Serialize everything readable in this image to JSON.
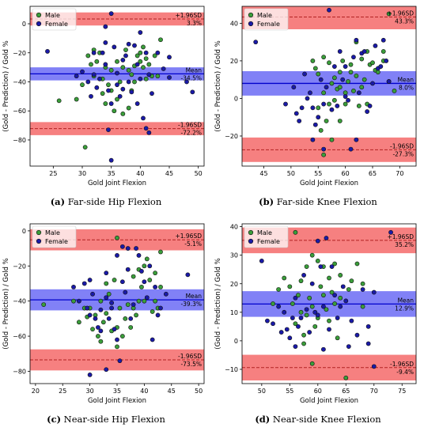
{
  "legend": [
    {
      "label": "Male",
      "color": "#3a9e3a"
    },
    {
      "label": "Female",
      "color": "#1a1aa8"
    }
  ],
  "colors": {
    "band_red": "#f46a6a",
    "band_blue": "#6b6bf4",
    "line_red": "#b22222",
    "line_blue": "#0000cc",
    "edge": "#111111"
  },
  "ylabel": "(Gold - Prediction) / Gold %",
  "xlabel": "Gold Joint Flexion",
  "chart_data": [
    {
      "type": "scatter",
      "caption_letter": "(a)",
      "caption_text": "Far-side Hip Flexion",
      "xlim": [
        21,
        51
      ],
      "ylim": [
        -98,
        12
      ],
      "xticks": [
        25,
        30,
        35,
        40,
        45,
        50
      ],
      "yticks": [
        0,
        -20,
        -40,
        -60,
        -80
      ],
      "mean": -34.5,
      "upper": 3.3,
      "lower": -72.2,
      "band_half": 4.5,
      "labels": {
        "upper": "+1.96SD",
        "upper_val": "3.3%",
        "mean": "Mean",
        "mean_val": "-34.5%",
        "lower": "-1.96SD",
        "lower_val": "-72.2%"
      },
      "male": [
        [
          26,
          -53
        ],
        [
          30,
          -42
        ],
        [
          30.5,
          -85
        ],
        [
          31,
          -22
        ],
        [
          31.5,
          -28
        ],
        [
          32,
          -18
        ],
        [
          32,
          -36
        ],
        [
          32.5,
          -26
        ],
        [
          33,
          -20
        ],
        [
          33.5,
          -38
        ],
        [
          33.5,
          -48
        ],
        [
          34,
          -30
        ],
        [
          34,
          -55
        ],
        [
          34.5,
          -42
        ],
        [
          35,
          -32
        ],
        [
          35,
          -46
        ],
        [
          35.5,
          -60
        ],
        [
          36,
          -26
        ],
        [
          36,
          -52
        ],
        [
          36.5,
          -40
        ],
        [
          37,
          -30
        ],
        [
          37.5,
          -18
        ],
        [
          38,
          -32
        ],
        [
          38,
          -58
        ],
        [
          38.5,
          -35
        ],
        [
          38.5,
          -46
        ],
        [
          39,
          -29
        ],
        [
          39.5,
          -22
        ],
        [
          40,
          -20
        ],
        [
          40,
          -26
        ],
        [
          40.5,
          -16
        ],
        [
          40.5,
          -30
        ],
        [
          41,
          -24
        ],
        [
          41,
          -38
        ],
        [
          41.5,
          -28
        ],
        [
          42,
          -36
        ],
        [
          42.5,
          -22
        ],
        [
          43,
          -36
        ],
        [
          43.5,
          -11
        ],
        [
          29,
          -52
        ],
        [
          37,
          -62
        ],
        [
          39,
          -40
        ]
      ],
      "female": [
        [
          24,
          -19
        ],
        [
          29,
          -36
        ],
        [
          30,
          -33
        ],
        [
          31,
          -40
        ],
        [
          31.5,
          -50
        ],
        [
          32,
          -20
        ],
        [
          32,
          -35
        ],
        [
          32.5,
          -44
        ],
        [
          33,
          -38
        ],
        [
          33.5,
          -20
        ],
        [
          34,
          -2
        ],
        [
          34,
          -13
        ],
        [
          34,
          -28
        ],
        [
          34.5,
          -46
        ],
        [
          34.5,
          -73
        ],
        [
          35,
          7
        ],
        [
          35,
          -55
        ],
        [
          35,
          -94
        ],
        [
          35.5,
          -16
        ],
        [
          36,
          -34
        ],
        [
          36,
          -42
        ],
        [
          36.5,
          -50
        ],
        [
          37,
          -25
        ],
        [
          37,
          -45
        ],
        [
          37.5,
          -22
        ],
        [
          38,
          -14
        ],
        [
          38,
          -40
        ],
        [
          38.5,
          -47
        ],
        [
          39,
          -15
        ],
        [
          39.5,
          -28
        ],
        [
          39.5,
          -55
        ],
        [
          40,
          -6
        ],
        [
          40,
          -38
        ],
        [
          40.5,
          -65
        ],
        [
          41,
          -20
        ],
        [
          41.5,
          -35
        ],
        [
          41.5,
          -75
        ],
        [
          42,
          -48
        ],
        [
          43,
          -20
        ],
        [
          44,
          -31
        ],
        [
          45,
          -23
        ],
        [
          45,
          -37
        ],
        [
          48,
          -40
        ],
        [
          49,
          -47
        ],
        [
          41,
          -72
        ]
      ]
    },
    {
      "type": "scatter",
      "caption_letter": "(b)",
      "caption_text": "Far-side Knee Flexion",
      "xlim": [
        41,
        73
      ],
      "ylim": [
        -36,
        49
      ],
      "xticks": [
        45,
        50,
        55,
        60,
        65,
        70
      ],
      "yticks": [
        40,
        20,
        0,
        -20
      ],
      "mean": 8.0,
      "upper": 43.3,
      "lower": -27.3,
      "band_half": 6.5,
      "labels": {
        "upper": "+1.96SD",
        "upper_val": "43.3%",
        "mean": "Mean",
        "mean_val": "8.0%",
        "lower": "-1.96SD",
        "lower_val": "-27.3%"
      },
      "male": [
        [
          54,
          20
        ],
        [
          54.5,
          16
        ],
        [
          55,
          13
        ],
        [
          55,
          -5
        ],
        [
          55.5,
          -17
        ],
        [
          56,
          22
        ],
        [
          56,
          3
        ],
        [
          56.5,
          -12
        ],
        [
          57,
          19
        ],
        [
          57,
          -3
        ],
        [
          57.5,
          8
        ],
        [
          58,
          11
        ],
        [
          58,
          -1
        ],
        [
          58.5,
          5
        ],
        [
          59,
          14
        ],
        [
          59,
          6
        ],
        [
          59.5,
          20
        ],
        [
          60,
          3
        ],
        [
          60,
          -3
        ],
        [
          60.5,
          9
        ],
        [
          61,
          18
        ],
        [
          61,
          14
        ],
        [
          61.5,
          4
        ],
        [
          62,
          30
        ],
        [
          62,
          12
        ],
        [
          62.5,
          -4
        ],
        [
          63,
          21
        ],
        [
          63,
          6
        ],
        [
          63.5,
          10
        ],
        [
          64,
          25
        ],
        [
          64,
          -3
        ],
        [
          64.5,
          18
        ],
        [
          65,
          19
        ],
        [
          65.5,
          15
        ],
        [
          66,
          14
        ],
        [
          67,
          25
        ],
        [
          67,
          20
        ],
        [
          68,
          9
        ],
        [
          68,
          45
        ],
        [
          69,
          4
        ],
        [
          56,
          -30
        ],
        [
          57.5,
          -22
        ],
        [
          59,
          -12
        ]
      ],
      "female": [
        [
          43.5,
          30
        ],
        [
          49,
          -3
        ],
        [
          50.5,
          6
        ],
        [
          51,
          -8
        ],
        [
          51.5,
          -12
        ],
        [
          52,
          -5
        ],
        [
          52.5,
          13
        ],
        [
          53,
          0
        ],
        [
          53.5,
          3
        ],
        [
          54,
          -5
        ],
        [
          54,
          -22
        ],
        [
          54.5,
          -14
        ],
        [
          55,
          -10
        ],
        [
          55.5,
          10
        ],
        [
          56,
          -3
        ],
        [
          56,
          -27
        ],
        [
          56.5,
          6
        ],
        [
          57,
          47
        ],
        [
          57.5,
          -6
        ],
        [
          58,
          17
        ],
        [
          58.5,
          -4
        ],
        [
          59,
          25
        ],
        [
          59.5,
          10
        ],
        [
          60,
          17
        ],
        [
          60,
          1
        ],
        [
          60.5,
          -1
        ],
        [
          61,
          -27
        ],
        [
          61.5,
          22
        ],
        [
          62,
          31
        ],
        [
          62.5,
          3
        ],
        [
          63,
          24
        ],
        [
          63.5,
          25
        ],
        [
          64,
          -7
        ],
        [
          64.5,
          -4
        ],
        [
          65,
          8
        ],
        [
          65.5,
          28
        ],
        [
          66,
          16
        ],
        [
          66.5,
          17
        ],
        [
          67,
          31
        ],
        [
          67.5,
          20
        ],
        [
          68,
          9
        ],
        [
          62,
          -22
        ]
      ]
    },
    {
      "type": "scatter",
      "caption_letter": "(c)",
      "caption_text": "Near-side Hip Flexion",
      "xlim": [
        19,
        51
      ],
      "ylim": [
        -87,
        4
      ],
      "xticks": [
        20,
        25,
        30,
        35,
        40,
        45,
        50
      ],
      "yticks": [
        0,
        -20,
        -40,
        -60,
        -80
      ],
      "mean": -39.3,
      "upper": -5.1,
      "lower": -73.5,
      "band_half": 6.0,
      "labels": {
        "upper": "+1.96SD",
        "upper_val": "-5.1%",
        "mean": "Mean",
        "mean_val": "-39.3%",
        "lower": "-1.96SD",
        "lower_val": "-73.5%"
      },
      "male": [
        [
          21.5,
          -42
        ],
        [
          27,
          -40
        ],
        [
          28,
          -52
        ],
        [
          29,
          -44
        ],
        [
          29.5,
          -49
        ],
        [
          30,
          -44
        ],
        [
          30.5,
          -56
        ],
        [
          31,
          -48
        ],
        [
          31.5,
          -60
        ],
        [
          32,
          -40
        ],
        [
          32,
          -63
        ],
        [
          32.5,
          -52
        ],
        [
          33,
          -30
        ],
        [
          33,
          -47
        ],
        [
          33.5,
          -36
        ],
        [
          34,
          -57
        ],
        [
          34.5,
          -28
        ],
        [
          35,
          -55
        ],
        [
          35,
          -66
        ],
        [
          35.5,
          -44
        ],
        [
          36,
          -60
        ],
        [
          36.5,
          -50
        ],
        [
          37,
          -42
        ],
        [
          37.5,
          -55
        ],
        [
          38,
          -26
        ],
        [
          38,
          -44
        ],
        [
          38.5,
          -48
        ],
        [
          39,
          -22
        ],
        [
          39,
          -40
        ],
        [
          39.5,
          -32
        ],
        [
          40,
          -20
        ],
        [
          40,
          -40
        ],
        [
          40.5,
          -16
        ],
        [
          41,
          -28
        ],
        [
          41.5,
          -46
        ],
        [
          42,
          -24
        ],
        [
          42,
          -40
        ],
        [
          42.5,
          -44
        ],
        [
          43,
          -32
        ],
        [
          43,
          -12
        ],
        [
          35,
          -4
        ]
      ],
      "female": [
        [
          27,
          -32
        ],
        [
          28,
          -40
        ],
        [
          29,
          -30
        ],
        [
          29.5,
          -44
        ],
        [
          30,
          -28
        ],
        [
          30,
          -48
        ],
        [
          30,
          -82
        ],
        [
          30.5,
          -36
        ],
        [
          31,
          -50
        ],
        [
          31.5,
          -55
        ],
        [
          32,
          -45
        ],
        [
          32,
          -57
        ],
        [
          33,
          -24
        ],
        [
          33,
          -38
        ],
        [
          33,
          -79
        ],
        [
          33.5,
          -50
        ],
        [
          34,
          -44
        ],
        [
          34.5,
          -56
        ],
        [
          35,
          -14
        ],
        [
          35,
          -62
        ],
        [
          35.5,
          -74
        ],
        [
          36,
          -9
        ],
        [
          36,
          -29
        ],
        [
          36.5,
          -35
        ],
        [
          37,
          -10
        ],
        [
          37,
          -22
        ],
        [
          37.5,
          -50
        ],
        [
          38,
          -42
        ],
        [
          38.5,
          -10
        ],
        [
          39,
          -14
        ],
        [
          39.5,
          -23
        ],
        [
          40,
          -29
        ],
        [
          40.5,
          -38
        ],
        [
          41,
          -20
        ],
        [
          41.5,
          -62
        ],
        [
          42,
          -32
        ],
        [
          42.5,
          -48
        ],
        [
          43,
          -44
        ],
        [
          44,
          -36
        ],
        [
          48,
          -25
        ],
        [
          34,
          -41
        ]
      ]
    },
    {
      "type": "scatter",
      "caption_letter": "(d)",
      "caption_text": "Near-side Knee Flexion",
      "xlim": [
        46.5,
        77.5
      ],
      "ylim": [
        -15,
        41
      ],
      "xticks": [
        50,
        55,
        60,
        65,
        70,
        75
      ],
      "yticks": [
        40,
        30,
        20,
        10,
        0,
        -10
      ],
      "mean": 12.9,
      "upper": 35.2,
      "lower": -9.4,
      "band_half": 4.5,
      "labels": {
        "upper": "+1.96SD",
        "upper_val": "35.2%",
        "mean": "Mean",
        "mean_val": "12.9%",
        "lower": "-1.96SD",
        "lower_val": "-9.4%"
      },
      "male": [
        [
          52,
          13
        ],
        [
          53,
          18
        ],
        [
          54,
          22
        ],
        [
          55,
          19
        ],
        [
          55.5,
          13
        ],
        [
          56,
          38
        ],
        [
          56,
          6
        ],
        [
          56.5,
          16
        ],
        [
          57,
          10
        ],
        [
          57,
          21
        ],
        [
          57.5,
          2
        ],
        [
          58,
          9
        ],
        [
          58,
          26
        ],
        [
          58.5,
          15
        ],
        [
          59,
          30
        ],
        [
          59,
          12
        ],
        [
          59.5,
          5
        ],
        [
          60,
          28
        ],
        [
          60,
          8
        ],
        [
          60.5,
          19
        ],
        [
          61,
          16
        ],
        [
          61,
          26
        ],
        [
          61.5,
          11
        ],
        [
          62,
          22
        ],
        [
          62,
          7
        ],
        [
          62.5,
          17
        ],
        [
          63,
          27
        ],
        [
          63,
          13
        ],
        [
          63.5,
          1
        ],
        [
          64,
          23
        ],
        [
          64,
          15
        ],
        [
          65,
          -13
        ],
        [
          65.5,
          18
        ],
        [
          66,
          21
        ],
        [
          67,
          27
        ],
        [
          68,
          20
        ],
        [
          68,
          12
        ],
        [
          59,
          -8
        ],
        [
          57.5,
          -1
        ]
      ],
      "female": [
        [
          50,
          28
        ],
        [
          51,
          7
        ],
        [
          52,
          6
        ],
        [
          53,
          12
        ],
        [
          53.5,
          3
        ],
        [
          54,
          10
        ],
        [
          54.5,
          4
        ],
        [
          55,
          1
        ],
        [
          55.5,
          8
        ],
        [
          56,
          15
        ],
        [
          56,
          -2
        ],
        [
          56.5,
          5
        ],
        [
          57,
          8
        ],
        [
          57.5,
          23
        ],
        [
          58,
          11
        ],
        [
          58.5,
          3
        ],
        [
          59,
          20
        ],
        [
          59.5,
          10
        ],
        [
          60,
          9
        ],
        [
          60,
          35
        ],
        [
          60.5,
          26
        ],
        [
          61,
          12
        ],
        [
          61.5,
          36
        ],
        [
          62,
          4
        ],
        [
          62.5,
          26
        ],
        [
          63,
          16
        ],
        [
          63.5,
          8
        ],
        [
          64,
          12
        ],
        [
          64.5,
          19
        ],
        [
          65,
          14
        ],
        [
          65.5,
          -2
        ],
        [
          66,
          7
        ],
        [
          67,
          2
        ],
        [
          68,
          18
        ],
        [
          69,
          5
        ],
        [
          69,
          -1
        ],
        [
          70,
          17
        ],
        [
          70,
          -9
        ],
        [
          73,
          38
        ],
        [
          61,
          -3
        ]
      ]
    }
  ]
}
